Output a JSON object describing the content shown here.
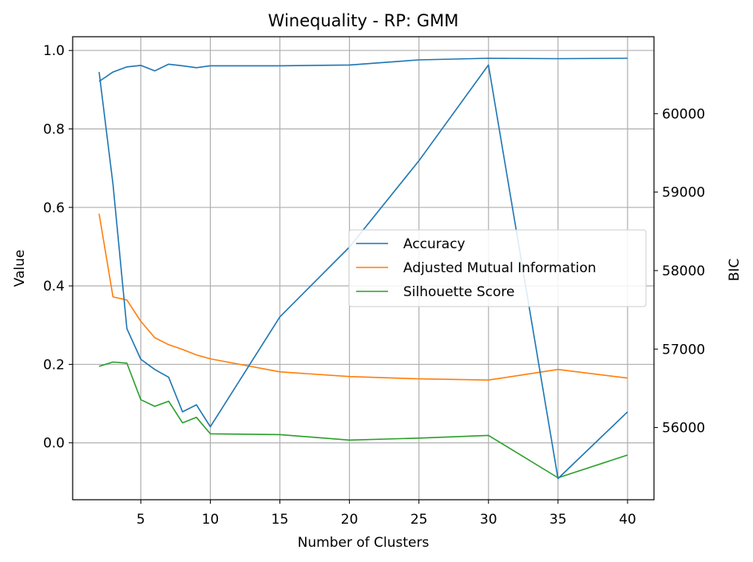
{
  "chart_data": {
    "type": "line",
    "title": "Winequality - RP: GMM",
    "xlabel": "Number of Clusters",
    "ylabel": "Value",
    "y2label": "BIC",
    "x": [
      2,
      3,
      4,
      5,
      6,
      7,
      8,
      9,
      10,
      15,
      20,
      25,
      30,
      35,
      40
    ],
    "xlim": [
      0.1,
      41.9
    ],
    "ylim": [
      -0.145,
      1.035
    ],
    "y2lim": [
      55080,
      60980
    ],
    "xticks": [
      5,
      10,
      15,
      20,
      25,
      30,
      35,
      40
    ],
    "yticks": [
      0.0,
      0.2,
      0.4,
      0.6,
      0.8,
      1.0
    ],
    "yticklabels": [
      "0.0",
      "0.2",
      "0.4",
      "0.6",
      "0.8",
      "1.0"
    ],
    "y2ticks": [
      56000,
      57000,
      58000,
      59000,
      60000
    ],
    "y2ticklabels": [
      "56000",
      "57000",
      "58000",
      "59000",
      "60000"
    ],
    "grid": true,
    "legend_position": "center-right",
    "series": [
      {
        "name": "Accuracy",
        "axis": "left",
        "color": "#1f77b4",
        "values": [
          0.921,
          0.945,
          0.958,
          0.962,
          0.948,
          0.965,
          0.961,
          0.956,
          0.961,
          0.961,
          0.963,
          0.976,
          0.98,
          0.979,
          0.98
        ]
      },
      {
        "name": "Adjusted Mutual Information",
        "axis": "left",
        "color": "#ff7f0e",
        "values": [
          0.584,
          0.372,
          0.364,
          0.31,
          0.268,
          0.25,
          0.238,
          0.224,
          0.214,
          0.181,
          0.169,
          0.163,
          0.16,
          0.187,
          0.165
        ]
      },
      {
        "name": "Silhouette Score",
        "axis": "left",
        "color": "#2ca02c",
        "values": [
          0.195,
          0.206,
          0.203,
          0.11,
          0.093,
          0.106,
          0.051,
          0.065,
          0.023,
          0.021,
          0.007,
          0.012,
          0.019,
          -0.089,
          -0.031
        ]
      },
      {
        "axis": "right",
        "color": "#1f77b4",
        "values": [
          60530,
          59100,
          57260,
          56870,
          56740,
          56640,
          56200,
          56290,
          56010,
          57410,
          58300,
          59400,
          60620,
          55350,
          56200
        ]
      }
    ]
  }
}
